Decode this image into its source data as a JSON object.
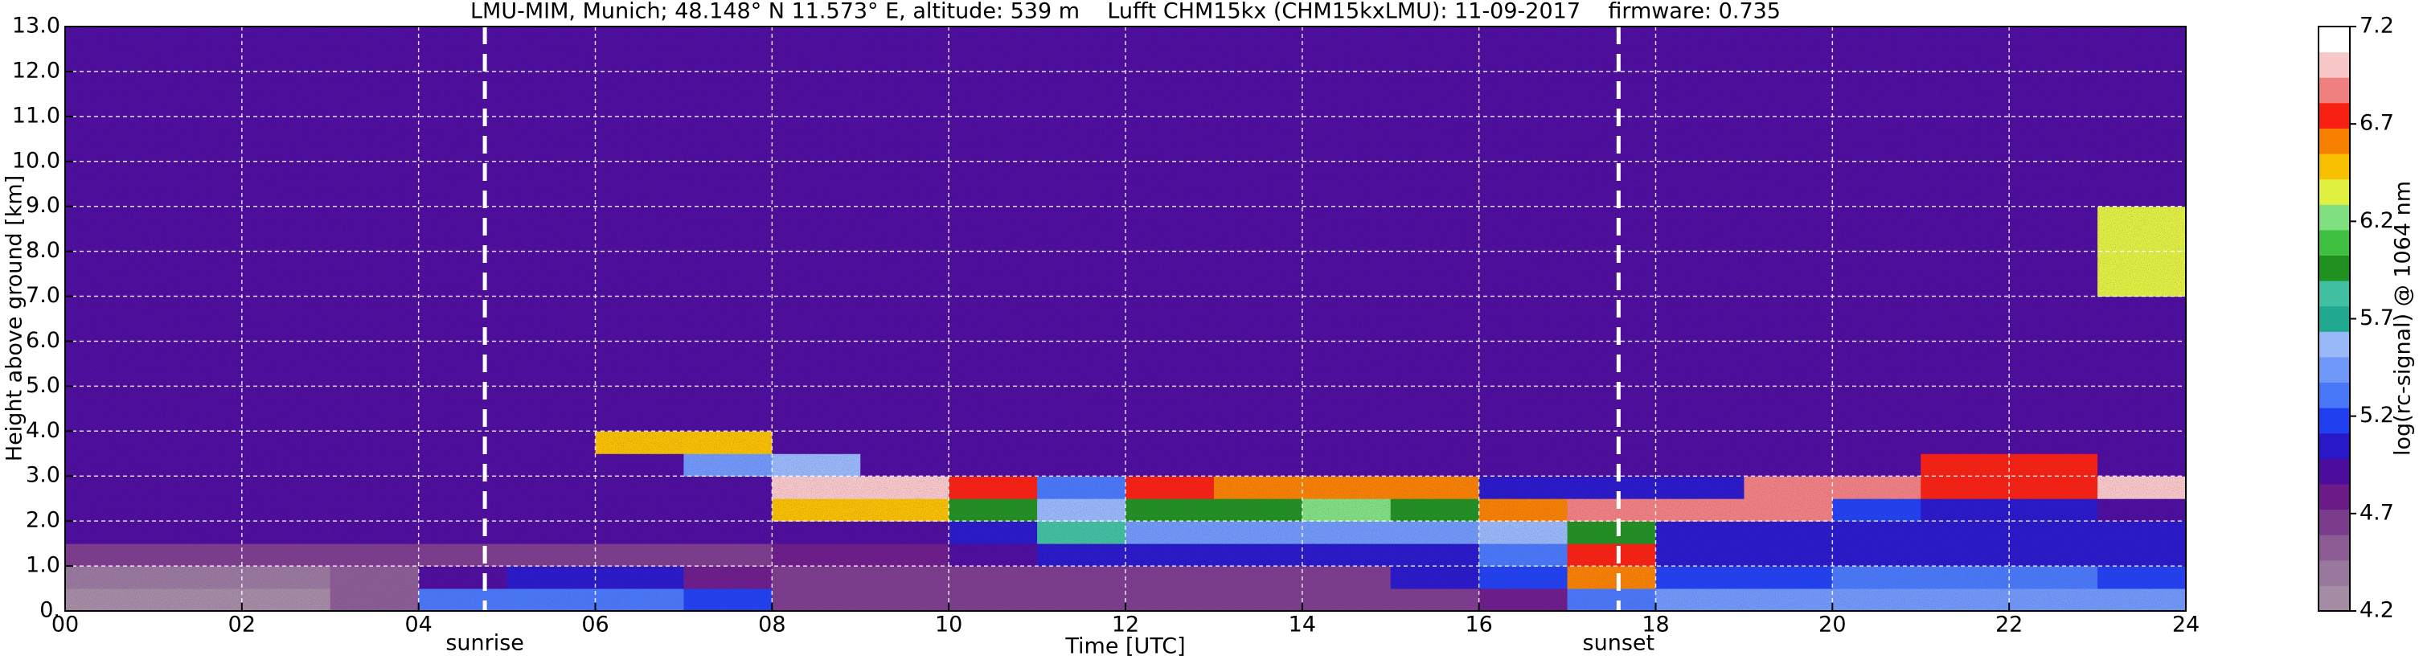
{
  "chart_data": {
    "type": "heatmap",
    "title": "LMU-MIM, Munich; 48.148° N 11.573° E, altitude: 539 m    Lufft CHM15kx (CHM15kxLMU): 11-09-2017    firmware: 0.735",
    "x_label": "Time [UTC]",
    "y_label": "Height above ground [km]",
    "colorbar_label": "log(rc-signal) @ 1064 nm",
    "xlim": [
      0,
      24
    ],
    "xticks": [
      {
        "value": 0,
        "label": "00"
      },
      {
        "value": 2,
        "label": "02"
      },
      {
        "value": 4,
        "label": "04"
      },
      {
        "value": 6,
        "label": "06"
      },
      {
        "value": 8,
        "label": "08"
      },
      {
        "value": 10,
        "label": "10"
      },
      {
        "value": 12,
        "label": "12"
      },
      {
        "value": 14,
        "label": "14"
      },
      {
        "value": 16,
        "label": "16"
      },
      {
        "value": 18,
        "label": "18"
      },
      {
        "value": 20,
        "label": "20"
      },
      {
        "value": 22,
        "label": "22"
      },
      {
        "value": 24,
        "label": "24"
      }
    ],
    "ylim": [
      0,
      13
    ],
    "yticks": [
      {
        "value": 0,
        "label": "0."
      },
      {
        "value": 1,
        "label": "1.0"
      },
      {
        "value": 2,
        "label": "2.0"
      },
      {
        "value": 3,
        "label": "3.0"
      },
      {
        "value": 4,
        "label": "4.0"
      },
      {
        "value": 5,
        "label": "5.0"
      },
      {
        "value": 6,
        "label": "6.0"
      },
      {
        "value": 7,
        "label": "7.0"
      },
      {
        "value": 8,
        "label": "8.0"
      },
      {
        "value": 9,
        "label": "9.0"
      },
      {
        "value": 10,
        "label": "10.0"
      },
      {
        "value": 11,
        "label": "11.0"
      },
      {
        "value": 12,
        "label": "12.0"
      },
      {
        "value": 13,
        "label": "13.0"
      }
    ],
    "grid": true,
    "clim": [
      4.2,
      7.2
    ],
    "cticks": [
      4.2,
      4.7,
      5.2,
      5.7,
      6.2,
      6.7,
      7.2
    ],
    "colors": [
      "#a48ca4",
      "#98789c",
      "#8c5c94",
      "#7c3c8c",
      "#6c1c88",
      "#4c0c9c",
      "#2818c8",
      "#2040f0",
      "#4878f8",
      "#7098f8",
      "#98b8f8",
      "#20a890",
      "#40c0a0",
      "#209020",
      "#40c040",
      "#80e080",
      "#e0f040",
      "#f8c000",
      "#f88000",
      "#f82010",
      "#f08080",
      "#f8c8c8",
      "#ffffff"
    ],
    "x_edges": [
      0,
      1,
      2,
      3,
      4,
      5,
      6,
      7,
      8,
      9,
      10,
      11,
      12,
      13,
      14,
      15,
      16,
      17,
      18,
      19,
      20,
      21,
      22,
      23,
      24
    ],
    "y_edges": [
      0,
      0.5,
      1,
      1.5,
      2,
      2.5,
      3,
      3.5,
      4,
      5,
      7,
      9,
      13
    ],
    "z": [
      [
        4.3,
        4.3,
        4.3,
        4.5,
        5.3,
        5.3,
        5.3,
        5.2,
        4.6,
        4.6,
        4.6,
        4.6,
        4.6,
        4.6,
        4.6,
        4.6,
        4.8,
        5.3,
        5.4,
        5.4,
        5.4,
        5.4,
        5.5,
        5.4
      ],
      [
        4.4,
        4.4,
        4.4,
        4.5,
        4.9,
        5.0,
        5.0,
        4.8,
        4.7,
        4.7,
        4.7,
        4.7,
        4.7,
        4.7,
        4.7,
        5.0,
        5.2,
        6.6,
        5.2,
        5.2,
        5.3,
        5.3,
        5.3,
        5.2
      ],
      [
        4.6,
        4.6,
        4.6,
        4.6,
        4.6,
        4.6,
        4.6,
        4.7,
        4.8,
        4.8,
        4.9,
        5.0,
        5.0,
        5.0,
        5.0,
        5.1,
        5.3,
        6.7,
        5.1,
        5.1,
        5.1,
        5.1,
        5.1,
        5.0
      ],
      [
        4.9,
        4.9,
        4.9,
        4.9,
        4.9,
        4.9,
        4.9,
        4.9,
        4.9,
        4.9,
        5.0,
        5.8,
        5.4,
        5.4,
        5.4,
        5.4,
        5.6,
        6.0,
        5.0,
        5.0,
        5.0,
        5.1,
        5.1,
        5.0
      ],
      [
        4.9,
        4.9,
        4.9,
        4.9,
        4.9,
        4.9,
        4.9,
        4.9,
        6.5,
        6.5,
        6.0,
        5.6,
        6.0,
        6.0,
        6.2,
        6.0,
        6.6,
        6.9,
        6.9,
        6.9,
        5.2,
        5.0,
        5.1,
        4.95
      ],
      [
        4.95,
        4.95,
        4.95,
        4.95,
        4.95,
        4.95,
        4.95,
        4.95,
        7.0,
        7.0,
        6.8,
        5.3,
        6.8,
        6.6,
        6.6,
        6.6,
        5.0,
        5.0,
        5.0,
        6.9,
        6.9,
        6.8,
        6.8,
        7.0
      ],
      [
        4.95,
        4.95,
        4.95,
        4.95,
        4.95,
        4.95,
        4.95,
        5.5,
        5.6,
        4.95,
        4.95,
        4.95,
        4.95,
        4.95,
        4.95,
        4.95,
        4.95,
        4.95,
        4.95,
        4.95,
        4.95,
        6.8,
        6.8,
        4.95
      ],
      [
        4.95,
        4.95,
        4.95,
        4.95,
        4.95,
        4.95,
        6.5,
        6.5,
        4.95,
        4.95,
        4.95,
        4.95,
        4.95,
        4.95,
        4.95,
        4.95,
        4.95,
        4.95,
        4.95,
        4.95,
        4.95,
        4.95,
        4.95,
        4.95
      ],
      [
        4.95,
        4.95,
        4.95,
        4.95,
        4.95,
        4.95,
        4.95,
        4.95,
        4.95,
        4.95,
        4.95,
        4.95,
        4.95,
        4.95,
        4.95,
        4.95,
        4.95,
        4.95,
        4.95,
        4.95,
        4.95,
        4.95,
        4.95,
        4.95
      ],
      [
        4.95,
        4.95,
        4.95,
        4.95,
        4.95,
        4.95,
        4.95,
        4.95,
        4.95,
        4.95,
        4.95,
        4.95,
        4.95,
        4.95,
        4.95,
        4.95,
        4.95,
        4.95,
        4.95,
        4.95,
        4.95,
        4.95,
        4.95,
        4.95
      ],
      [
        4.95,
        4.95,
        4.95,
        4.95,
        4.95,
        4.95,
        4.95,
        4.95,
        4.95,
        4.95,
        4.95,
        4.95,
        4.95,
        4.95,
        4.95,
        4.95,
        4.95,
        4.95,
        4.95,
        4.95,
        4.95,
        4.95,
        4.95,
        6.4
      ],
      [
        4.95,
        4.95,
        4.95,
        4.95,
        4.95,
        4.95,
        4.95,
        4.95,
        4.95,
        4.95,
        4.95,
        4.95,
        4.95,
        4.95,
        4.95,
        4.95,
        4.95,
        4.95,
        4.95,
        4.95,
        4.95,
        4.95,
        4.95,
        4.95
      ]
    ],
    "annotations": [
      {
        "text": "sunrise",
        "x": 4.75
      },
      {
        "text": "sunset",
        "x": 17.58
      }
    ]
  }
}
